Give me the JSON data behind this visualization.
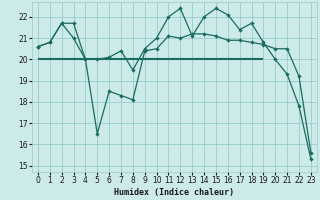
{
  "title": "",
  "xlabel": "Humidex (Indice chaleur)",
  "ylabel": "",
  "xlim": [
    -0.5,
    23.5
  ],
  "ylim": [
    14.7,
    22.7
  ],
  "yticks": [
    15,
    16,
    17,
    18,
    19,
    20,
    21,
    22
  ],
  "xticks": [
    0,
    1,
    2,
    3,
    4,
    5,
    6,
    7,
    8,
    9,
    10,
    11,
    12,
    13,
    14,
    15,
    16,
    17,
    18,
    19,
    20,
    21,
    22,
    23
  ],
  "bg_color": "#cceae8",
  "grid_color": "#99cccc",
  "line_color": "#1a6b60",
  "line1_x": [
    0,
    1,
    2,
    3,
    4,
    5,
    6,
    7,
    8,
    9,
    10,
    11,
    12,
    13,
    14,
    15,
    16,
    17,
    18,
    19,
    20,
    21,
    22,
    23
  ],
  "line1_y": [
    20.6,
    20.8,
    21.7,
    21.7,
    20.0,
    20.0,
    20.1,
    20.4,
    19.5,
    20.5,
    21.0,
    22.0,
    22.4,
    21.1,
    22.0,
    22.4,
    22.1,
    21.4,
    21.7,
    20.8,
    20.0,
    19.3,
    17.8,
    15.3
  ],
  "line2_x": [
    0,
    1,
    2,
    3,
    4,
    5,
    6,
    7,
    8,
    9,
    10,
    11,
    12,
    13,
    14,
    15,
    16,
    17,
    18,
    19,
    20,
    21,
    22,
    23
  ],
  "line2_y": [
    20.6,
    20.8,
    21.7,
    21.0,
    20.0,
    16.5,
    18.5,
    18.3,
    18.1,
    20.4,
    20.5,
    21.1,
    21.0,
    21.2,
    21.2,
    21.1,
    20.9,
    20.9,
    20.8,
    20.7,
    20.5,
    20.5,
    19.2,
    15.6
  ],
  "hline_y": 20.0,
  "hline_x_start": 0,
  "hline_x_end": 19
}
